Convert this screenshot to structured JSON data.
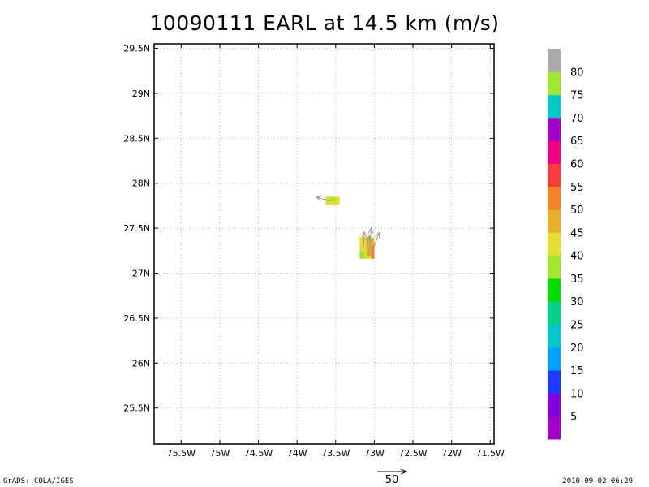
{
  "chart_data": {
    "type": "heatmap",
    "title": "10090111 EARL at 14.5 km (m/s)",
    "xlabel": "",
    "ylabel": "",
    "xlim": [
      -75.85,
      -71.45
    ],
    "ylim": [
      25.1,
      29.55
    ],
    "grid": true,
    "x_ticks": [
      {
        "value": -75.5,
        "label": "75.5W"
      },
      {
        "value": -75.0,
        "label": "75W"
      },
      {
        "value": -74.5,
        "label": "74.5W"
      },
      {
        "value": -74.0,
        "label": "74W"
      },
      {
        "value": -73.5,
        "label": "73.5W"
      },
      {
        "value": -73.0,
        "label": "73W"
      },
      {
        "value": -72.5,
        "label": "72.5W"
      },
      {
        "value": -72.0,
        "label": "72W"
      },
      {
        "value": -71.5,
        "label": "71.5W"
      }
    ],
    "y_ticks": [
      {
        "value": 25.5,
        "label": "25.5N"
      },
      {
        "value": 26.0,
        "label": "26N"
      },
      {
        "value": 26.5,
        "label": "26.5N"
      },
      {
        "value": 27.0,
        "label": "27N"
      },
      {
        "value": 27.5,
        "label": "27.5N"
      },
      {
        "value": 28.0,
        "label": "28N"
      },
      {
        "value": 28.5,
        "label": "28.5N"
      },
      {
        "value": 29.0,
        "label": "29N"
      },
      {
        "value": 29.5,
        "label": "29.5N"
      }
    ],
    "cells": [
      {
        "lon0": -73.63,
        "lon1": -73.45,
        "lat0": 27.76,
        "lat1": 27.85,
        "value": 42
      },
      {
        "lon0": -73.59,
        "lon1": -73.5,
        "lat0": 27.8,
        "lat1": 27.84,
        "value": 38
      },
      {
        "lon0": -73.19,
        "lon1": -73.0,
        "lat0": 27.16,
        "lat1": 27.4,
        "value": 43
      },
      {
        "lon0": -73.1,
        "lon1": -73.0,
        "lat0": 27.18,
        "lat1": 27.38,
        "value": 48
      },
      {
        "lon0": -73.04,
        "lon1": -73.0,
        "lat0": 27.16,
        "lat1": 27.3,
        "value": 52
      },
      {
        "lon0": -73.19,
        "lon1": -73.12,
        "lat0": 27.16,
        "lat1": 27.24,
        "value": 38
      }
    ],
    "vectors": [
      {
        "lon": -73.57,
        "lat": 27.8,
        "u": -24,
        "v": 7
      },
      {
        "lon": -73.15,
        "lat": 27.2,
        "u": 3,
        "v": 40
      },
      {
        "lon": -73.07,
        "lat": 27.2,
        "u": 4,
        "v": 47
      },
      {
        "lon": -73.02,
        "lat": 27.25,
        "u": 11,
        "v": 31
      },
      {
        "lon": -73.1,
        "lat": 27.3,
        "u": 5,
        "v": 18
      }
    ],
    "colorbar": {
      "colors": [
        "#a000c8",
        "#8200dc",
        "#1e3cff",
        "#00a0ff",
        "#00c8c8",
        "#00d28c",
        "#00dc00",
        "#a0e632",
        "#e6dc32",
        "#e6af2d",
        "#f08228",
        "#fa3c3c",
        "#f00082",
        "#a000c8",
        "#00c8c8",
        "#a0e632",
        "#aaaaaa"
      ],
      "labels": [
        "5",
        "10",
        "15",
        "20",
        "25",
        "30",
        "35",
        "40",
        "45",
        "50",
        "55",
        "60",
        "65",
        "70",
        "75",
        "80"
      ]
    },
    "reference_vector": {
      "label": "50",
      "value": 50
    }
  },
  "footer": {
    "left": "GrADS: COLA/IGES",
    "right": "2010-09-02-06:29"
  }
}
